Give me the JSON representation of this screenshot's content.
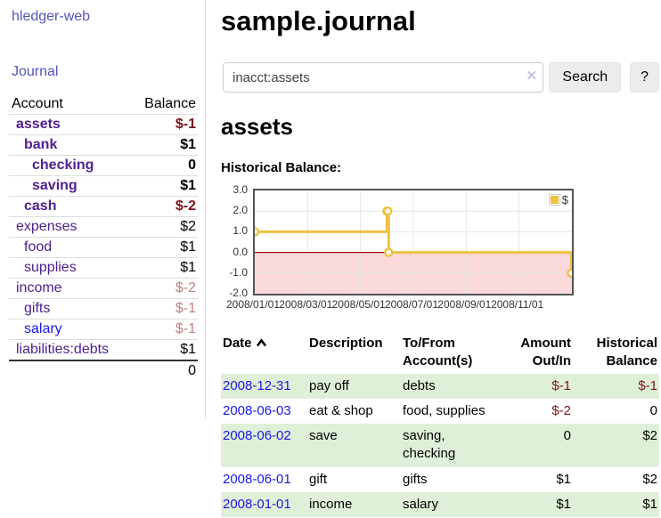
{
  "app": {
    "title": "hledger-web",
    "nav_journal": "Journal"
  },
  "sidebar": {
    "header": {
      "account": "Account",
      "balance": "Balance"
    },
    "accounts": [
      {
        "name": "assets",
        "balance": "$-1",
        "level": 0,
        "bold": true,
        "balance_class": "neg",
        "link_color": "purple"
      },
      {
        "name": "bank",
        "balance": "$1",
        "level": 1,
        "bold": true,
        "balance_class": "",
        "link_color": "purple"
      },
      {
        "name": "checking",
        "balance": "0",
        "level": 2,
        "bold": true,
        "balance_class": "",
        "link_color": "purple"
      },
      {
        "name": "saving",
        "balance": "$1",
        "level": 2,
        "bold": true,
        "balance_class": "",
        "link_color": "purple"
      },
      {
        "name": "cash",
        "balance": "$-2",
        "level": 1,
        "bold": true,
        "balance_class": "neg",
        "link_color": "purple"
      },
      {
        "name": "expenses",
        "balance": "$2",
        "level": 0,
        "bold": false,
        "balance_class": "",
        "link_color": "purple"
      },
      {
        "name": "food",
        "balance": "$1",
        "level": 1,
        "bold": false,
        "balance_class": "",
        "link_color": "purple"
      },
      {
        "name": "supplies",
        "balance": "$1",
        "level": 1,
        "bold": false,
        "balance_class": "",
        "link_color": "purple"
      },
      {
        "name": "income",
        "balance": "$-2",
        "level": 0,
        "bold": false,
        "balance_class": "negdim",
        "link_color": "purple"
      },
      {
        "name": "gifts",
        "balance": "$-1",
        "level": 1,
        "bold": false,
        "balance_class": "negdim",
        "link_color": "purple"
      },
      {
        "name": "salary",
        "balance": "$-1",
        "level": 1,
        "bold": false,
        "balance_class": "negdim",
        "link_color": "blue"
      },
      {
        "name": "liabilities:debts",
        "balance": "$1",
        "level": 0,
        "bold": false,
        "balance_class": "",
        "link_color": "purple"
      }
    ],
    "total": "0"
  },
  "header": {
    "title": "sample.journal"
  },
  "search": {
    "value": "inacct:assets",
    "clear_icon": "×",
    "button": "Search",
    "help_button": "?"
  },
  "account_page": {
    "title": "assets",
    "chart_label": "Historical Balance:"
  },
  "chart_data": {
    "type": "line",
    "step": true,
    "title": "Historical Balance:",
    "series": [
      {
        "name": "$",
        "color": "#edc240",
        "points": [
          {
            "date": "2008/01/01",
            "value": 1
          },
          {
            "date": "2008/06/01",
            "value": 2
          },
          {
            "date": "2008/06/02",
            "value": 2
          },
          {
            "date": "2008/06/03",
            "value": 0
          },
          {
            "date": "2008/12/31",
            "value": -1
          }
        ]
      }
    ],
    "x_ticks": [
      "2008/01/01",
      "2008/03/01",
      "2008/05/01",
      "2008/07/01",
      "2008/09/01",
      "2008/11/01"
    ],
    "y_ticks": [
      "3.0",
      "2.0",
      "1.0",
      "0.0",
      "-1.0",
      "-2.0"
    ],
    "ylim": [
      -2,
      3
    ],
    "x_range_months": 12,
    "grid": true,
    "grid_color": "#e6e6e6",
    "negative_region_color": "#f9d9d9",
    "zero_line_color": "#a40000",
    "legend": {
      "label": "$",
      "swatch_color": "#edc240",
      "position": "top-right"
    }
  },
  "register": {
    "columns": [
      {
        "label": "Date",
        "sort": "asc",
        "align": "left"
      },
      {
        "label": "Description",
        "align": "left"
      },
      {
        "label": "To/From Account(s)",
        "align": "left"
      },
      {
        "label": "Amount Out/In",
        "align": "right"
      },
      {
        "label": "Historical Balance",
        "align": "right"
      }
    ],
    "rows": [
      {
        "date": "2008-12-31",
        "description": "pay off",
        "accounts": "debts",
        "amount": "$-1",
        "amount_negative": true,
        "balance": "$-1",
        "balance_negative": true
      },
      {
        "date": "2008-06-03",
        "description": "eat & shop",
        "accounts": "food, supplies",
        "amount": "$-2",
        "amount_negative": true,
        "balance": "0",
        "balance_negative": false
      },
      {
        "date": "2008-06-02",
        "description": "save",
        "accounts": "saving, checking",
        "amount": "0",
        "amount_negative": false,
        "balance": "$2",
        "balance_negative": false
      },
      {
        "date": "2008-06-01",
        "description": "gift",
        "accounts": "gifts",
        "amount": "$1",
        "amount_negative": false,
        "balance": "$2",
        "balance_negative": false
      },
      {
        "date": "2008-01-01",
        "description": "income",
        "accounts": "salary",
        "amount": "$1",
        "amount_negative": false,
        "balance": "$1",
        "balance_negative": false
      }
    ]
  }
}
